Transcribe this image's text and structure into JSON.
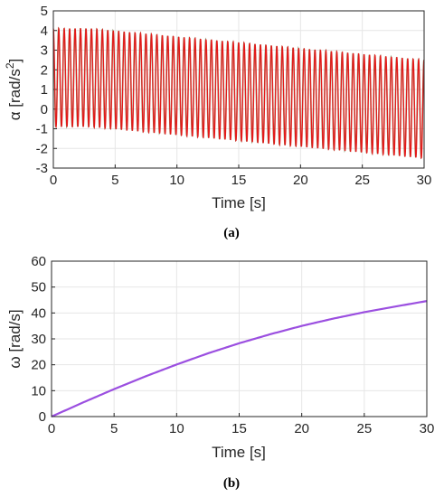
{
  "chart_data": [
    {
      "type": "line",
      "panel": "a",
      "caption": "(a)",
      "xlabel": "Time [s]",
      "ylabel": "α [rad/s²]",
      "ylabel_main": "α [rad/s",
      "ylabel_sup": "2",
      "ylabel_close": "]",
      "xlim": [
        0,
        30
      ],
      "ylim": [
        -3,
        5
      ],
      "xticks": [
        0,
        5,
        10,
        15,
        20,
        25,
        30
      ],
      "yticks": [
        -3,
        -2,
        -1,
        0,
        1,
        2,
        3,
        4,
        5
      ],
      "grid": true,
      "colors": {
        "signal": "#e31a1a",
        "envelope": "#556b2f"
      },
      "signal": {
        "kind": "oscillation",
        "cycles": 68,
        "upper_envelope": {
          "x": [
            0,
            3,
            30
          ],
          "y": [
            4.1,
            4.1,
            2.5
          ]
        },
        "lower_envelope": {
          "x": [
            0,
            3,
            30
          ],
          "y": [
            -0.9,
            -0.9,
            -2.5
          ]
        }
      }
    },
    {
      "type": "line",
      "panel": "b",
      "caption": "(b)",
      "xlabel": "Time [s]",
      "ylabel": "ω [rad/s]",
      "xlim": [
        0,
        30
      ],
      "ylim": [
        0,
        60
      ],
      "xticks": [
        0,
        5,
        10,
        15,
        20,
        25,
        30
      ],
      "yticks": [
        0,
        10,
        20,
        30,
        40,
        50,
        60
      ],
      "grid": true,
      "colors": {
        "line": "#9b4fe0"
      },
      "series": [
        {
          "x": [
            0,
            2.5,
            5,
            7.5,
            10,
            12.5,
            15,
            17.5,
            20,
            22.5,
            25,
            27.5,
            30
          ],
          "values": [
            0,
            5.4,
            10.6,
            15.5,
            20.1,
            24.4,
            28.3,
            31.8,
            35.0,
            37.8,
            40.3,
            42.5,
            44.6
          ]
        }
      ]
    }
  ]
}
